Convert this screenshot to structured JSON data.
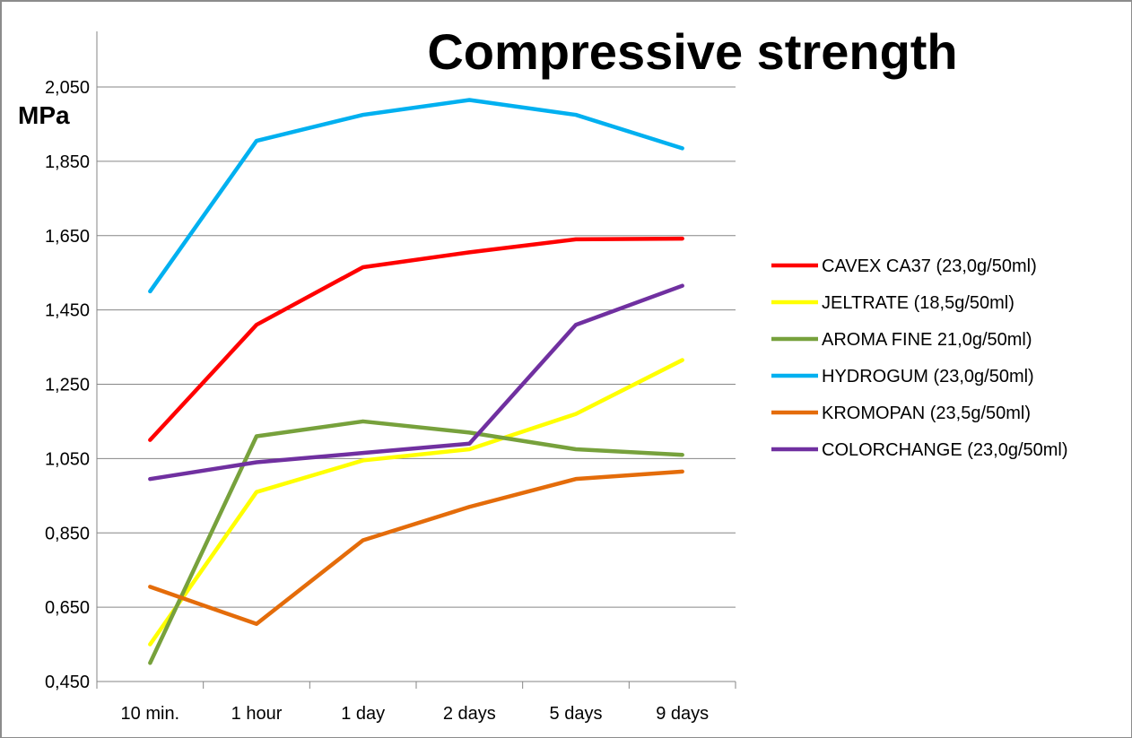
{
  "chart_data": {
    "type": "line",
    "title": "Compressive strength",
    "ylabel": "MPa",
    "xlabel": "",
    "categories": [
      "10 min.",
      "1 hour",
      "1 day",
      "2 days",
      "5 days",
      "9 days"
    ],
    "ylim": [
      0.45,
      2.05
    ],
    "yticks": [
      0.45,
      0.65,
      0.85,
      1.05,
      1.25,
      1.45,
      1.65,
      1.85,
      2.05
    ],
    "ytick_labels": [
      "0,450",
      "0,650",
      "0,850",
      "1,050",
      "1,250",
      "1,450",
      "1,650",
      "1,850",
      "2,050"
    ],
    "grid": "horizontal",
    "legend_position": "right",
    "series": [
      {
        "name": "CAVEX CA37 (23,0g/50ml)",
        "color": "#ff0000",
        "values": [
          1.1,
          1.41,
          1.565,
          1.605,
          1.64,
          1.642
        ]
      },
      {
        "name": "JELTRATE (18,5g/50ml)",
        "color": "#ffff00",
        "values": [
          0.55,
          0.96,
          1.045,
          1.075,
          1.17,
          1.315
        ]
      },
      {
        "name": "AROMA FINE 21,0g/50ml)",
        "color": "#77a13c",
        "values": [
          0.5,
          1.11,
          1.15,
          1.12,
          1.075,
          1.06
        ]
      },
      {
        "name": "HYDROGUM (23,0g/50ml)",
        "color": "#00b0f0",
        "values": [
          1.5,
          1.905,
          1.975,
          2.015,
          1.975,
          1.885
        ]
      },
      {
        "name": "KROMOPAN (23,5g/50ml)",
        "color": "#e46c0a",
        "values": [
          0.705,
          0.605,
          0.83,
          0.92,
          0.995,
          1.015
        ]
      },
      {
        "name": "COLORCHANGE (23,0g/50ml)",
        "color": "#7030a0",
        "values": [
          0.995,
          1.04,
          1.065,
          1.09,
          1.41,
          1.515
        ]
      }
    ]
  }
}
